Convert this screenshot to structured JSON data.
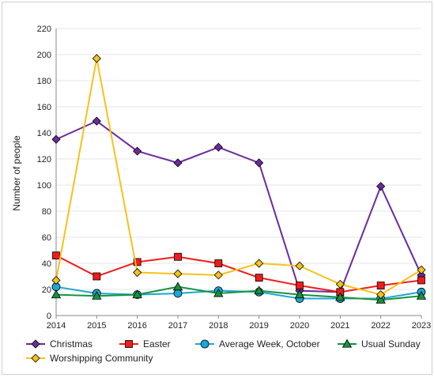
{
  "chart_data": {
    "type": "line",
    "title": "",
    "xlabel": "",
    "ylabel": "Number of people",
    "ylim": [
      0,
      220
    ],
    "yticks": [
      0,
      20,
      40,
      60,
      80,
      100,
      120,
      140,
      160,
      180,
      200,
      220
    ],
    "x": [
      "2014",
      "2015",
      "2016",
      "2017",
      "2018",
      "2019",
      "2020",
      "2021",
      "2022",
      "2023"
    ],
    "grid": "horizontal",
    "legend_position": "bottom",
    "series": [
      {
        "name": "Christmas",
        "color": "#6a2c9a",
        "marker": "diamond",
        "values": [
          135,
          149,
          126,
          117,
          129,
          117,
          19,
          18,
          99,
          31
        ]
      },
      {
        "name": "Easter",
        "color": "#ee1c1c",
        "marker": "square",
        "values": [
          46,
          30,
          41,
          45,
          40,
          29,
          23,
          18,
          23,
          27
        ]
      },
      {
        "name": "Average Week, October",
        "color": "#1aa6d6",
        "marker": "circle",
        "values": [
          22,
          17,
          16,
          17,
          19,
          18,
          13,
          13,
          13,
          18
        ]
      },
      {
        "name": "Usual Sunday",
        "color": "#17923f",
        "marker": "triangle",
        "values": [
          16,
          15,
          16,
          22,
          17,
          19,
          16,
          14,
          12,
          15
        ]
      },
      {
        "name": "Worshipping Community",
        "color": "#f6c21a",
        "marker": "diamond",
        "values": [
          27,
          197,
          33,
          32,
          31,
          40,
          38,
          24,
          16,
          35
        ]
      }
    ]
  }
}
